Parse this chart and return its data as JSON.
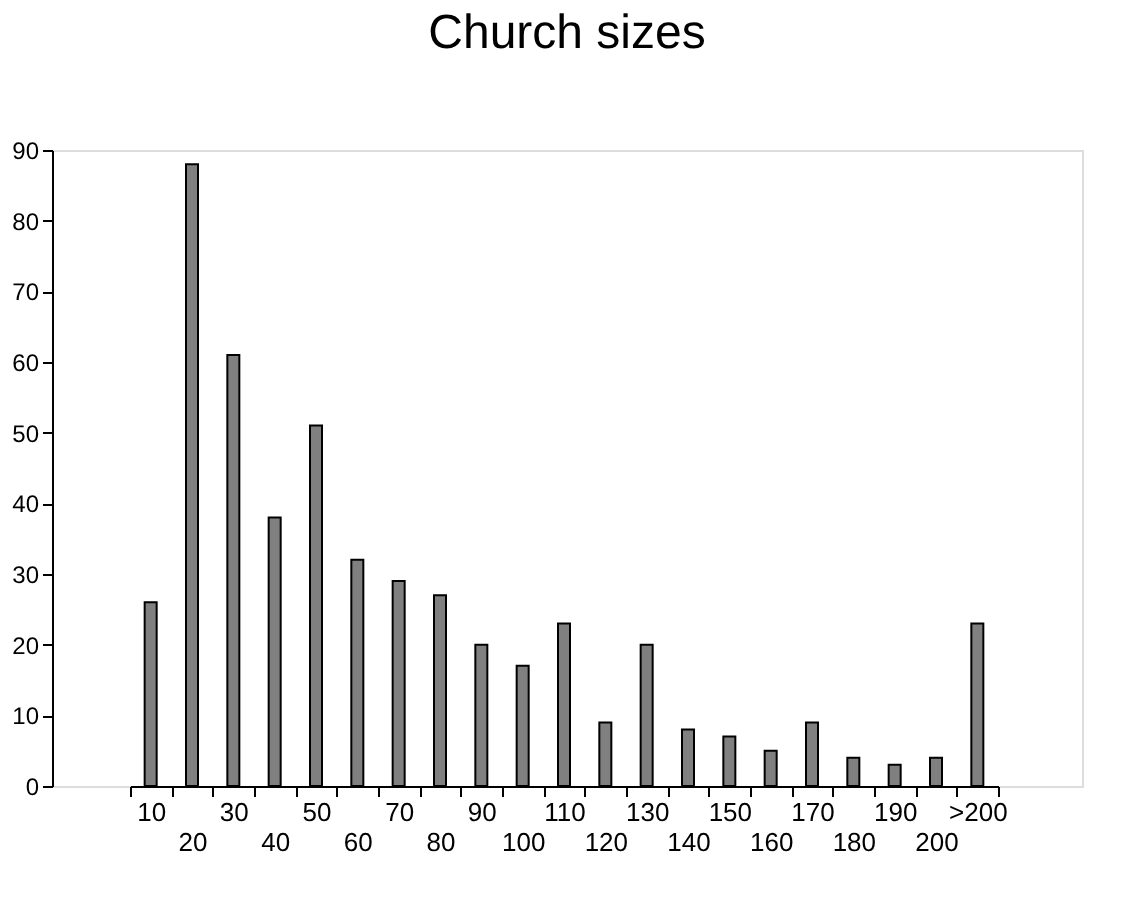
{
  "chart_data": {
    "type": "bar",
    "title": "Church sizes",
    "categories": [
      "10",
      "20",
      "30",
      "40",
      "50",
      "60",
      "70",
      "80",
      "90",
      "100",
      "110",
      "120",
      "130",
      "140",
      "150",
      "160",
      "170",
      "180",
      "190",
      "200",
      ">200"
    ],
    "values": [
      26,
      88,
      61,
      38,
      51,
      32,
      29,
      27,
      20,
      17,
      23,
      9,
      20,
      8,
      7,
      5,
      9,
      4,
      3,
      4,
      23
    ],
    "color": "#808080",
    "ylim": [
      0,
      90
    ],
    "yticks": [
      0,
      10,
      20,
      30,
      40,
      50,
      60,
      70,
      80,
      90
    ],
    "grid": false
  }
}
